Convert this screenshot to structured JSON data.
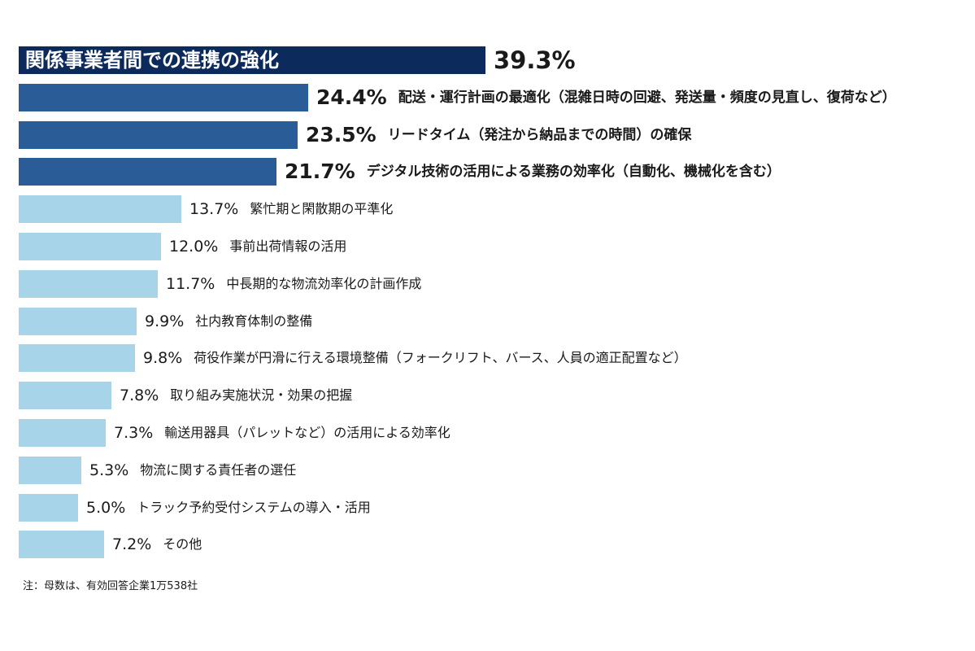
{
  "chart_data": {
    "type": "bar",
    "orientation": "horizontal",
    "unit": "%",
    "categories": [
      "関係事業者間での連携の強化",
      "配送・運行計画の最適化（混雑日時の回避、発送量・頻度の見直し、復荷など）",
      "リードタイム（発注から納品までの時間）の確保",
      "デジタル技術の活用による業務の効率化（自動化、機械化を含む）",
      "繁忙期と閑散期の平準化",
      "事前出荷情報の活用",
      "中長期的な物流効率化の計画作成",
      "社内教育体制の整備",
      "荷役作業が円滑に行える環境整備（フォークリフト、バース、人員の適正配置など）",
      "取り組み実施状況・効果の把握",
      "輸送用器具（パレットなど）の活用による効率化",
      "物流に関する責任者の選任",
      "トラック予約受付システムの導入・活用",
      "その他"
    ],
    "values": [
      39.3,
      24.4,
      23.5,
      21.7,
      13.7,
      12.0,
      11.7,
      9.9,
      9.8,
      7.8,
      7.3,
      5.3,
      5.0,
      7.2
    ],
    "value_labels": [
      "39.3%",
      "24.4%",
      "23.5%",
      "21.7%",
      "13.7%",
      "12.0%",
      "11.7%",
      "9.9%",
      "9.8%",
      "7.8%",
      "7.3%",
      "5.3%",
      "5.0%",
      "7.2%"
    ],
    "tiers": [
      1,
      2,
      2,
      2,
      3,
      3,
      3,
      3,
      3,
      3,
      3,
      3,
      3,
      3
    ],
    "colors": {
      "tier1": "#0d2a5c",
      "tier2": "#2a5d97",
      "tier3": "#a7d4e9"
    }
  },
  "note": "注：母数は、有効回答企業1万538社"
}
